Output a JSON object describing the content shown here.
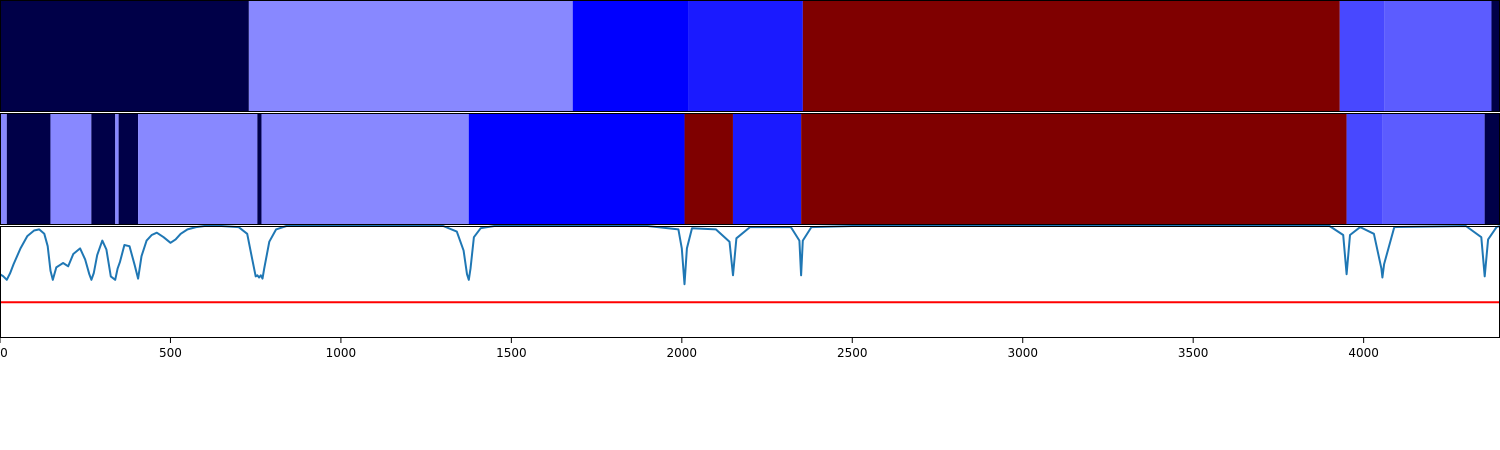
{
  "chart_data": [
    {
      "type": "heatmap",
      "title": "",
      "xlabel": "",
      "ylabel": "",
      "xlim": [
        0,
        4400
      ],
      "segments": [
        {
          "start": 0,
          "end": 730,
          "color": "#000048"
        },
        {
          "start": 730,
          "end": 1680,
          "color": "#8888ff"
        },
        {
          "start": 1680,
          "end": 2020,
          "color": "#0000ff"
        },
        {
          "start": 2020,
          "end": 2355,
          "color": "#1a1aff"
        },
        {
          "start": 2355,
          "end": 3930,
          "color": "#7f0000"
        },
        {
          "start": 3930,
          "end": 4060,
          "color": "#4848ff"
        },
        {
          "start": 4060,
          "end": 4375,
          "color": "#5c5cff"
        },
        {
          "start": 4375,
          "end": 4400,
          "color": "#000048"
        }
      ]
    },
    {
      "type": "heatmap",
      "title": "",
      "xlabel": "",
      "ylabel": "",
      "xlim": [
        0,
        4400
      ],
      "segments": [
        {
          "start": 0,
          "end": 20,
          "color": "#8888ff"
        },
        {
          "start": 20,
          "end": 148,
          "color": "#000048"
        },
        {
          "start": 148,
          "end": 268,
          "color": "#8888ff"
        },
        {
          "start": 268,
          "end": 338,
          "color": "#000048"
        },
        {
          "start": 338,
          "end": 348,
          "color": "#8888ff"
        },
        {
          "start": 348,
          "end": 405,
          "color": "#000048"
        },
        {
          "start": 405,
          "end": 755,
          "color": "#8888ff"
        },
        {
          "start": 755,
          "end": 767,
          "color": "#000048"
        },
        {
          "start": 767,
          "end": 1375,
          "color": "#8888ff"
        },
        {
          "start": 1375,
          "end": 2008,
          "color": "#0000ff"
        },
        {
          "start": 2008,
          "end": 2150,
          "color": "#7f0000"
        },
        {
          "start": 2150,
          "end": 2350,
          "color": "#1a1aff"
        },
        {
          "start": 2350,
          "end": 3950,
          "color": "#7f0000"
        },
        {
          "start": 3950,
          "end": 4055,
          "color": "#4848ff"
        },
        {
          "start": 4055,
          "end": 4355,
          "color": "#5c5cff"
        },
        {
          "start": 4355,
          "end": 4400,
          "color": "#000048"
        }
      ]
    },
    {
      "type": "line",
      "title": "",
      "xlabel": "",
      "ylabel": "",
      "xlim": [
        0,
        4400
      ],
      "ylim": [
        0,
        1
      ],
      "grid": false,
      "xticks": [
        0,
        500,
        1000,
        1500,
        2000,
        2500,
        3000,
        3500,
        4000
      ],
      "xtick_labels": [
        "0",
        "500",
        "1000",
        "1500",
        "2000",
        "2500",
        "3000",
        "3500",
        "4000"
      ],
      "series": [
        {
          "color": "#1f77b4",
          "x": [
            0,
            10,
            20,
            30,
            40,
            60,
            80,
            100,
            115,
            130,
            140,
            148,
            155,
            165,
            175,
            185,
            200,
            215,
            235,
            250,
            262,
            268,
            275,
            285,
            300,
            312,
            325,
            338,
            345,
            352,
            365,
            380,
            395,
            405,
            415,
            430,
            445,
            460,
            480,
            500,
            515,
            530,
            550,
            575,
            600,
            650,
            700,
            725,
            740,
            750,
            755,
            760,
            765,
            770,
            775,
            790,
            810,
            840,
            900,
            1000,
            1200,
            1300,
            1340,
            1360,
            1370,
            1375,
            1380,
            1390,
            1410,
            1450,
            1600,
            1900,
            1990,
            2000,
            2008,
            2015,
            2030,
            2100,
            2140,
            2150,
            2160,
            2200,
            2320,
            2345,
            2350,
            2355,
            2380,
            2500,
            3000,
            3900,
            3940,
            3950,
            3960,
            3990,
            4030,
            4052,
            4055,
            4060,
            4090,
            4300,
            4345,
            4355,
            4365,
            4390,
            4400
          ],
          "y": [
            0.57,
            0.55,
            0.52,
            0.58,
            0.66,
            0.8,
            0.91,
            0.96,
            0.97,
            0.93,
            0.82,
            0.6,
            0.52,
            0.63,
            0.65,
            0.67,
            0.64,
            0.75,
            0.8,
            0.7,
            0.57,
            0.52,
            0.58,
            0.74,
            0.87,
            0.79,
            0.55,
            0.52,
            0.62,
            0.68,
            0.83,
            0.82,
            0.65,
            0.53,
            0.73,
            0.87,
            0.92,
            0.94,
            0.9,
            0.85,
            0.88,
            0.93,
            0.97,
            0.99,
            1.0,
            1.0,
            0.99,
            0.93,
            0.7,
            0.55,
            0.56,
            0.54,
            0.56,
            0.53,
            0.62,
            0.86,
            0.97,
            1.0,
            1.0,
            1.0,
            1.0,
            1.0,
            0.95,
            0.78,
            0.57,
            0.52,
            0.62,
            0.9,
            0.98,
            1.0,
            1.0,
            1.0,
            0.97,
            0.8,
            0.48,
            0.8,
            0.98,
            0.97,
            0.86,
            0.56,
            0.89,
            0.99,
            0.99,
            0.87,
            0.56,
            0.87,
            0.99,
            1.0,
            1.0,
            1.0,
            0.92,
            0.57,
            0.92,
            0.99,
            0.93,
            0.62,
            0.54,
            0.66,
            0.99,
            1.0,
            0.9,
            0.55,
            0.88,
            0.99,
            1.0
          ]
        },
        {
          "color": "#ff0000",
          "x": [
            0,
            4400
          ],
          "y": [
            0.32,
            0.32
          ]
        }
      ]
    }
  ]
}
